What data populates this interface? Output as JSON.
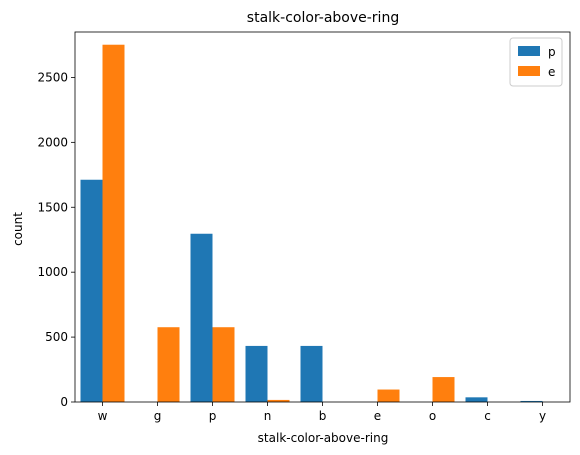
{
  "chart_data": {
    "type": "bar",
    "title": "stalk-color-above-ring",
    "xlabel": "stalk-color-above-ring",
    "ylabel": "count",
    "categories": [
      "w",
      "g",
      "p",
      "n",
      "b",
      "e",
      "o",
      "c",
      "y"
    ],
    "series": [
      {
        "name": "p",
        "color": "#1f77b4",
        "values": [
          1712,
          0,
          1296,
          432,
          432,
          0,
          0,
          36,
          8
        ]
      },
      {
        "name": "e",
        "color": "#ff7f0e",
        "values": [
          2752,
          576,
          576,
          16,
          0,
          96,
          192,
          0,
          0
        ]
      }
    ],
    "ylim": [
      0,
      2850
    ],
    "yticks": [
      0,
      500,
      1000,
      1500,
      2000,
      2500
    ],
    "grid": false,
    "legend_position": "top-right"
  }
}
